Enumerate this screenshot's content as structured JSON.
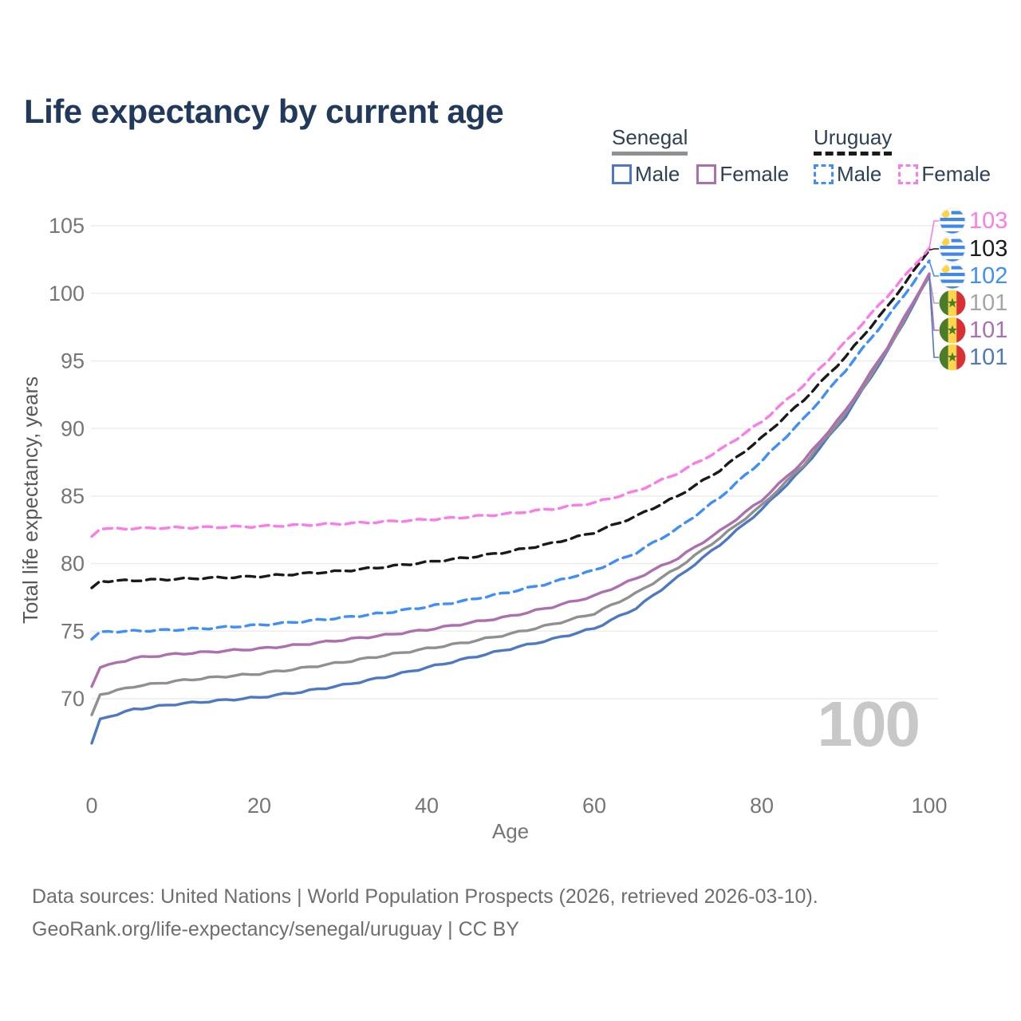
{
  "title": "Life expectancy by current age",
  "watermark": "100",
  "legend": {
    "senegal": {
      "label": "Senegal",
      "male": "Male",
      "female": "Female"
    },
    "uruguay": {
      "label": "Uruguay",
      "male": "Male",
      "female": "Female"
    }
  },
  "end_labels": [
    {
      "country": "Uruguay",
      "value": "103",
      "color": "#fb7ce8",
      "series": "uruguay_female"
    },
    {
      "country": "Uruguay",
      "value": "103",
      "color": "#1a1a1a",
      "series": "uruguay_total"
    },
    {
      "country": "Uruguay",
      "value": "102",
      "color": "#3f8efc",
      "series": "uruguay_male"
    },
    {
      "country": "Senegal",
      "value": "101",
      "color": "#a6a6a6",
      "series": "senegal_total"
    },
    {
      "country": "Senegal",
      "value": "101",
      "color": "#ad6fad",
      "series": "senegal_female"
    },
    {
      "country": "Senegal",
      "value": "101",
      "color": "#4e79c2",
      "series": "senegal_male"
    }
  ],
  "footer": {
    "line1": "Data sources: United Nations | World Population Prospects (2026, retrieved 2026-03-10).",
    "line2": "GeoRank.org/life-expectancy/senegal/uruguay | CC BY"
  },
  "chart_data": {
    "type": "line",
    "title": "Life expectancy by current age",
    "xlabel": "Age",
    "ylabel": "Total life expectancy, years",
    "xlim": [
      0,
      100
    ],
    "ylim": [
      66,
      105
    ],
    "xticks": [
      0,
      20,
      40,
      60,
      80,
      100
    ],
    "yticks": [
      70,
      75,
      80,
      85,
      90,
      95,
      100,
      105
    ],
    "grid": "horizontal",
    "legend_position": "top-right",
    "x": [
      0,
      1,
      5,
      10,
      15,
      20,
      25,
      30,
      35,
      40,
      45,
      50,
      55,
      60,
      65,
      70,
      75,
      80,
      85,
      90,
      95,
      100
    ],
    "series": [
      {
        "key": "senegal_male",
        "name": "Senegal Male",
        "country": "Senegal",
        "sex": "Male",
        "color": "#4e79c2",
        "dashed": false,
        "values": [
          66.7,
          68.5,
          69.2,
          69.6,
          69.85,
          70.1,
          70.5,
          71.0,
          71.6,
          72.3,
          73.0,
          73.7,
          74.4,
          75.2,
          76.7,
          79.0,
          81.4,
          84.0,
          87.1,
          90.9,
          95.7,
          101.25
        ]
      },
      {
        "key": "senegal_total",
        "name": "Senegal (both sexes)",
        "country": "Senegal",
        "sex": "Both",
        "color": "#909090",
        "dashed": false,
        "values": [
          68.8,
          70.3,
          70.9,
          71.3,
          71.6,
          71.85,
          72.25,
          72.7,
          73.2,
          73.7,
          74.2,
          74.8,
          75.5,
          76.3,
          77.8,
          79.7,
          81.9,
          84.3,
          87.3,
          91.1,
          95.8,
          101.35
        ]
      },
      {
        "key": "senegal_female",
        "name": "Senegal Female",
        "country": "Senegal",
        "sex": "Female",
        "color": "#ad6fad",
        "dashed": false,
        "values": [
          70.9,
          72.3,
          73.0,
          73.3,
          73.5,
          73.7,
          74.0,
          74.35,
          74.7,
          75.1,
          75.6,
          76.1,
          76.8,
          77.6,
          78.9,
          80.4,
          82.4,
          84.7,
          87.6,
          91.3,
          96.0,
          101.45
        ]
      },
      {
        "key": "uruguay_male",
        "name": "Uruguay Male",
        "country": "Uruguay",
        "sex": "Male",
        "color": "#3f8efc",
        "dashed": true,
        "values": [
          74.4,
          74.95,
          75.0,
          75.1,
          75.25,
          75.45,
          75.7,
          76.0,
          76.35,
          76.8,
          77.3,
          77.9,
          78.6,
          79.5,
          80.8,
          82.6,
          84.9,
          87.6,
          90.7,
          94.3,
          98.2,
          102.4
        ]
      },
      {
        "key": "uruguay_total",
        "name": "Uruguay (both sexes)",
        "country": "Uruguay",
        "sex": "Both",
        "color": "#1a1a1a",
        "dashed": true,
        "values": [
          78.2,
          78.7,
          78.75,
          78.85,
          78.95,
          79.05,
          79.25,
          79.45,
          79.75,
          80.1,
          80.45,
          80.9,
          81.5,
          82.3,
          83.5,
          85.0,
          86.9,
          89.3,
          92.1,
          95.3,
          99.0,
          103.2
        ]
      },
      {
        "key": "uruguay_female",
        "name": "Uruguay Female",
        "country": "Uruguay",
        "sex": "Female",
        "color": "#fb7ce8",
        "dashed": true,
        "values": [
          82.0,
          82.55,
          82.6,
          82.65,
          82.7,
          82.75,
          82.85,
          82.95,
          83.1,
          83.25,
          83.45,
          83.7,
          84.05,
          84.5,
          85.35,
          86.7,
          88.4,
          90.5,
          93.2,
          96.4,
          99.8,
          103.35
        ]
      }
    ]
  }
}
